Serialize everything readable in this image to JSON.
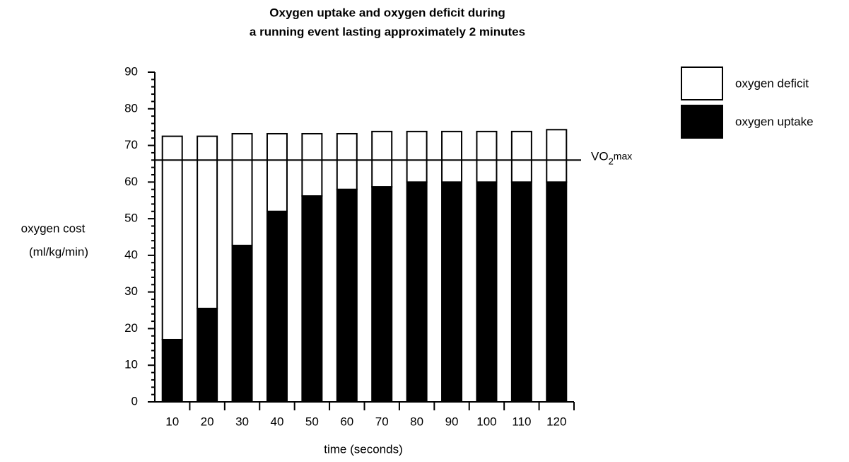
{
  "chart_data": {
    "type": "stacked_bar",
    "title": [
      "Oxygen uptake and oxygen deficit during",
      "a running event lasting approximately 2 minutes"
    ],
    "y_label": [
      "oxygen cost",
      "(ml/kg/min)"
    ],
    "x_label": "time (seconds)",
    "categories": [
      10,
      20,
      30,
      40,
      50,
      60,
      70,
      80,
      90,
      100,
      110,
      120
    ],
    "series": [
      {
        "name": "oxygen uptake",
        "color": "#000000",
        "values": [
          17,
          25.5,
          42.7,
          52,
          56.2,
          58,
          58.7,
          60,
          60,
          60,
          60,
          60
        ]
      },
      {
        "name": "oxygen deficit",
        "color": "#ffffff",
        "values": [
          55.5,
          47,
          30.5,
          21.2,
          17,
          15.2,
          15.1,
          13.8,
          13.8,
          13.8,
          13.8,
          14.3
        ]
      }
    ],
    "ylim": [
      0,
      90
    ],
    "yticks": [
      0,
      10,
      20,
      30,
      40,
      50,
      60,
      70,
      80,
      90
    ],
    "yminorticks": [
      2,
      4,
      6,
      8,
      12,
      14,
      16,
      18,
      22,
      24,
      26,
      28,
      32,
      34,
      36,
      38,
      42,
      44,
      46,
      48,
      52,
      54,
      56,
      58,
      62,
      64,
      66,
      68,
      72,
      74,
      76,
      78,
      82,
      84,
      86,
      88
    ],
    "reference_line": {
      "value": 66,
      "label": [
        "VO",
        "2",
        "max"
      ]
    },
    "legend": "upper right"
  }
}
